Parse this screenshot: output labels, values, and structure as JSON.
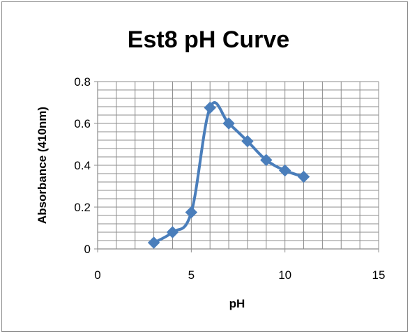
{
  "chart_data": {
    "type": "line",
    "title": "Est8 pH Curve",
    "xlabel": "pH",
    "ylabel": "Absorbance (410nm)",
    "xlim": [
      0,
      15
    ],
    "ylim": [
      0,
      0.8
    ],
    "x_ticks": [
      0,
      5,
      10,
      15
    ],
    "y_ticks": [
      0,
      0.2,
      0.4,
      0.6,
      0.8
    ],
    "x_tick_labels": [
      "0",
      "5",
      "10",
      "15"
    ],
    "y_tick_labels": [
      "0",
      "0.2",
      "0.4",
      "0.6",
      "0.8"
    ],
    "grid": true,
    "legend": "none",
    "smooth": true,
    "marker": "diamond",
    "series": [
      {
        "color": "#4a7ebb",
        "x": [
          3,
          4,
          5,
          6,
          7,
          8,
          9,
          10,
          11
        ],
        "y": [
          0.03,
          0.08,
          0.175,
          0.675,
          0.6,
          0.515,
          0.425,
          0.375,
          0.345
        ]
      }
    ]
  }
}
